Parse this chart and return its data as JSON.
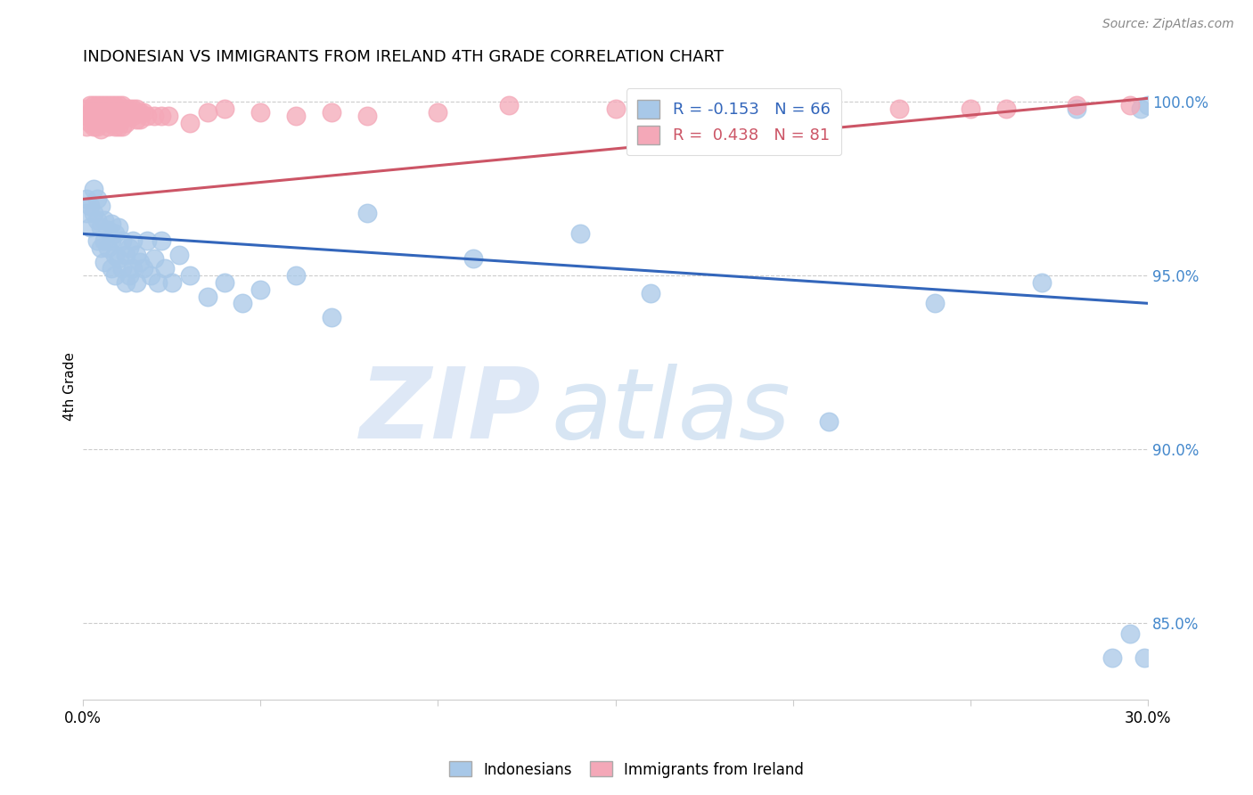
{
  "title": "INDONESIAN VS IMMIGRANTS FROM IRELAND 4TH GRADE CORRELATION CHART",
  "source": "Source: ZipAtlas.com",
  "ylabel": "4th Grade",
  "xlim": [
    0.0,
    0.3
  ],
  "ylim": [
    0.828,
    1.008
  ],
  "yticks": [
    0.85,
    0.9,
    0.95,
    1.0
  ],
  "ytick_labels": [
    "85.0%",
    "90.0%",
    "95.0%",
    "100.0%"
  ],
  "blue_R": "-0.153",
  "blue_N": "66",
  "pink_R": "0.438",
  "pink_N": "81",
  "blue_color": "#a8c8e8",
  "pink_color": "#f4a8b8",
  "blue_line_color": "#3366bb",
  "pink_line_color": "#cc5566",
  "background_color": "#ffffff",
  "grid_color": "#cccccc",
  "blue_scatter_x": [
    0.001,
    0.001,
    0.002,
    0.002,
    0.003,
    0.003,
    0.004,
    0.004,
    0.004,
    0.005,
    0.005,
    0.005,
    0.006,
    0.006,
    0.006,
    0.007,
    0.007,
    0.008,
    0.008,
    0.008,
    0.009,
    0.009,
    0.009,
    0.01,
    0.01,
    0.011,
    0.011,
    0.012,
    0.012,
    0.013,
    0.013,
    0.014,
    0.014,
    0.015,
    0.015,
    0.016,
    0.017,
    0.018,
    0.019,
    0.02,
    0.021,
    0.022,
    0.023,
    0.025,
    0.027,
    0.03,
    0.035,
    0.04,
    0.045,
    0.05,
    0.06,
    0.07,
    0.08,
    0.11,
    0.14,
    0.16,
    0.19,
    0.21,
    0.24,
    0.27,
    0.28,
    0.29,
    0.295,
    0.298,
    0.299,
    0.3
  ],
  "blue_scatter_y": [
    0.972,
    0.968,
    0.97,
    0.964,
    0.975,
    0.968,
    0.972,
    0.966,
    0.96,
    0.97,
    0.964,
    0.958,
    0.966,
    0.96,
    0.954,
    0.963,
    0.958,
    0.965,
    0.96,
    0.952,
    0.962,
    0.956,
    0.95,
    0.964,
    0.955,
    0.96,
    0.952,
    0.956,
    0.948,
    0.958,
    0.95,
    0.96,
    0.952,
    0.956,
    0.948,
    0.954,
    0.952,
    0.96,
    0.95,
    0.955,
    0.948,
    0.96,
    0.952,
    0.948,
    0.956,
    0.95,
    0.944,
    0.948,
    0.942,
    0.946,
    0.95,
    0.938,
    0.968,
    0.955,
    0.962,
    0.945,
    0.999,
    0.908,
    0.942,
    0.948,
    0.998,
    0.84,
    0.847,
    0.998,
    0.84,
    0.999
  ],
  "pink_scatter_x": [
    0.001,
    0.001,
    0.001,
    0.002,
    0.002,
    0.002,
    0.003,
    0.003,
    0.003,
    0.003,
    0.004,
    0.004,
    0.004,
    0.004,
    0.004,
    0.005,
    0.005,
    0.005,
    0.005,
    0.005,
    0.005,
    0.006,
    0.006,
    0.006,
    0.006,
    0.007,
    0.007,
    0.007,
    0.007,
    0.007,
    0.007,
    0.008,
    0.008,
    0.008,
    0.008,
    0.009,
    0.009,
    0.009,
    0.009,
    0.01,
    0.01,
    0.01,
    0.01,
    0.01,
    0.011,
    0.011,
    0.011,
    0.011,
    0.012,
    0.012,
    0.012,
    0.013,
    0.013,
    0.014,
    0.014,
    0.015,
    0.015,
    0.016,
    0.016,
    0.017,
    0.018,
    0.02,
    0.022,
    0.024,
    0.03,
    0.035,
    0.04,
    0.05,
    0.06,
    0.07,
    0.08,
    0.1,
    0.12,
    0.15,
    0.18,
    0.2,
    0.23,
    0.25,
    0.26,
    0.28,
    0.295
  ],
  "pink_scatter_y": [
    0.998,
    0.996,
    0.993,
    0.999,
    0.997,
    0.994,
    0.999,
    0.998,
    0.996,
    0.993,
    0.999,
    0.998,
    0.997,
    0.995,
    0.993,
    0.999,
    0.998,
    0.997,
    0.996,
    0.994,
    0.992,
    0.999,
    0.998,
    0.997,
    0.995,
    0.999,
    0.998,
    0.997,
    0.996,
    0.995,
    0.993,
    0.999,
    0.998,
    0.996,
    0.994,
    0.999,
    0.997,
    0.995,
    0.993,
    0.999,
    0.998,
    0.997,
    0.995,
    0.993,
    0.999,
    0.997,
    0.995,
    0.993,
    0.998,
    0.996,
    0.994,
    0.998,
    0.996,
    0.998,
    0.996,
    0.998,
    0.995,
    0.997,
    0.995,
    0.997,
    0.996,
    0.996,
    0.996,
    0.996,
    0.994,
    0.997,
    0.998,
    0.997,
    0.996,
    0.997,
    0.996,
    0.997,
    0.999,
    0.998,
    0.999,
    0.997,
    0.998,
    0.998,
    0.998,
    0.999,
    0.999
  ],
  "blue_trendline_x0": 0.0,
  "blue_trendline_y0": 0.962,
  "blue_trendline_x1": 0.3,
  "blue_trendline_y1": 0.942,
  "pink_trendline_x0": 0.0,
  "pink_trendline_y0": 0.972,
  "pink_trendline_x1": 0.3,
  "pink_trendline_y1": 1.001
}
